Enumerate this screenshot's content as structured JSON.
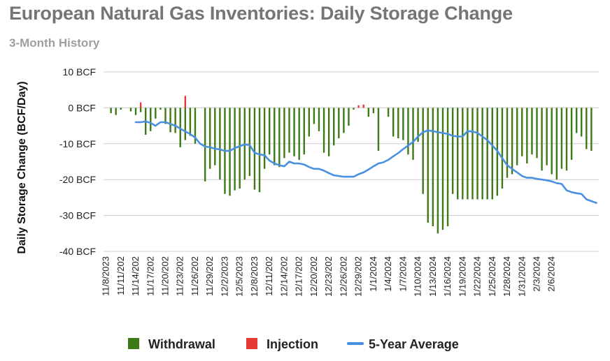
{
  "page": {
    "title": "European Natural Gas Inventories: Daily Storage Change",
    "subtitle": "3-Month History"
  },
  "chart_data": {
    "type": "bar",
    "title": "European Natural Gas Inventories: Daily Storage Change",
    "subtitle": "3-Month History",
    "xlabel": "",
    "ylabel": "Daily Storage Change (BCF/Day)",
    "ylim": [
      -40,
      10
    ],
    "yticks": [
      "10 BCF",
      "0 BCF",
      "-10 BCF",
      "-20 BCF",
      "-30 BCF",
      "-40 BCF"
    ],
    "ytick_values": [
      10,
      0,
      -10,
      -20,
      -30,
      -40
    ],
    "xtick_labels": [
      "11/8/2023",
      "11/11/202",
      "11/14/202",
      "11/17/202",
      "11/20/202",
      "11/23/202",
      "11/26/202",
      "11/29/202",
      "12/2/2023",
      "12/5/2023",
      "12/8/2023",
      "12/11/202",
      "12/14/202",
      "12/17/202",
      "12/20/202",
      "12/23/202",
      "12/26/202",
      "12/29/202",
      "1/1/2024",
      "1/4/2024",
      "1/7/2024",
      "1/10/2024",
      "1/13/2024",
      "1/16/2024",
      "1/19/2024",
      "1/22/2024",
      "1/25/2024",
      "1/28/2024",
      "1/31/2024",
      "2/3/2024",
      "2/6/2024"
    ],
    "grid": true,
    "legend_position": "bottom",
    "colors": {
      "withdrawal": "#3b7a17",
      "injection": "#e53935",
      "five_year_average": "#4a90e2",
      "grid": "#cccccc"
    },
    "series": [
      {
        "name": "Withdrawal",
        "type": "bar",
        "values": [
          0,
          -1.5,
          -2,
          -0.5,
          0,
          -1,
          -2,
          -1.2,
          -7.5,
          -6.5,
          -3,
          -0.5,
          -4.5,
          -6.8,
          -7,
          -11,
          -9,
          -7.8,
          -10,
          0,
          -20.5,
          -17,
          -16,
          -20,
          -24,
          -24.5,
          -23,
          -22.5,
          -20,
          -19,
          -22.8,
          -23.5,
          -17,
          -13,
          -16,
          -16.5,
          -14,
          -12.5,
          -13.5,
          -14.5,
          -13,
          -8,
          -4.5,
          -6.5,
          -12.5,
          -13.5,
          -10.5,
          -8.5,
          -7,
          -5,
          -0.5,
          0,
          0,
          -2.5,
          -1.5,
          -12,
          0,
          -2.5,
          -8,
          -8.5,
          -9,
          -13,
          -14.5,
          -9.5,
          -24,
          -32,
          -33,
          -35,
          -34,
          -33,
          -24,
          -25.5,
          -25.5,
          -25.5,
          -25.5,
          -25.5,
          -25.5,
          -25.5,
          -25.5,
          -24.5,
          -22.5,
          -19.5,
          -18.5,
          -16,
          -13.5,
          -15.5,
          -13,
          -14,
          -17.5,
          -16,
          -18.5,
          -20,
          -17,
          -17.5,
          -14.5,
          -7,
          -8,
          -11.5,
          -12,
          0
        ]
      },
      {
        "name": "Injection",
        "type": "bar",
        "values": [
          0,
          0,
          0,
          0,
          0,
          0,
          0,
          1.5,
          0,
          0,
          0,
          0,
          0,
          0,
          0,
          0,
          3.3,
          0,
          0,
          0,
          0,
          0,
          0,
          0,
          0,
          0,
          0,
          0,
          0,
          0,
          0,
          0,
          0,
          0,
          0,
          0,
          0,
          0,
          0,
          0,
          0,
          0,
          0,
          0,
          0,
          0,
          0,
          0,
          0,
          0,
          0,
          0.7,
          0.9,
          0,
          0,
          0,
          0,
          0,
          0,
          0,
          0,
          0,
          0,
          0,
          0,
          0,
          0,
          0,
          0,
          0,
          0,
          0,
          0,
          0,
          0,
          0,
          0,
          0,
          0,
          0,
          0,
          0,
          0,
          0,
          0,
          0,
          0,
          0,
          0,
          0,
          0,
          0,
          0,
          0,
          0,
          0,
          0,
          0,
          0,
          0
        ]
      },
      {
        "name": "5-Year Average",
        "type": "line",
        "values": [
          null,
          null,
          null,
          null,
          null,
          null,
          -4,
          -4,
          -3.8,
          -4.2,
          -5,
          -4,
          -4,
          -4.5,
          -5,
          -5.8,
          -6.6,
          -7.3,
          -8.3,
          -10,
          -10.8,
          -11,
          -11.4,
          -11.6,
          -12,
          -12,
          -11.2,
          -10.7,
          -10.2,
          -10.4,
          -12.5,
          -13,
          -13.2,
          -14.7,
          -15.5,
          -16,
          -16.3,
          -15,
          -15.5,
          -15.5,
          -15.8,
          -16.5,
          -17,
          -17,
          -17.5,
          -18.2,
          -18.8,
          -19,
          -19.2,
          -19.2,
          -19.2,
          -18.5,
          -18,
          -17.2,
          -16.3,
          -15.5,
          -15.2,
          -14.5,
          -13.5,
          -12.6,
          -11.5,
          -10.5,
          -9.5,
          -8,
          -6.8,
          -6.3,
          -6.5,
          -6.8,
          -7,
          -7.3,
          -7.8,
          -8,
          -8,
          -6.5,
          -6.6,
          -7,
          -8,
          -9,
          -10.5,
          -12,
          -14,
          -16,
          -17,
          -18,
          -19,
          -19.5,
          -19.5,
          -19.8,
          -20,
          -20.2,
          -20.5,
          -21,
          -21.2,
          -23,
          -23.5,
          -23.8,
          -24,
          -25.5,
          -26,
          -26.5
        ]
      }
    ]
  }
}
